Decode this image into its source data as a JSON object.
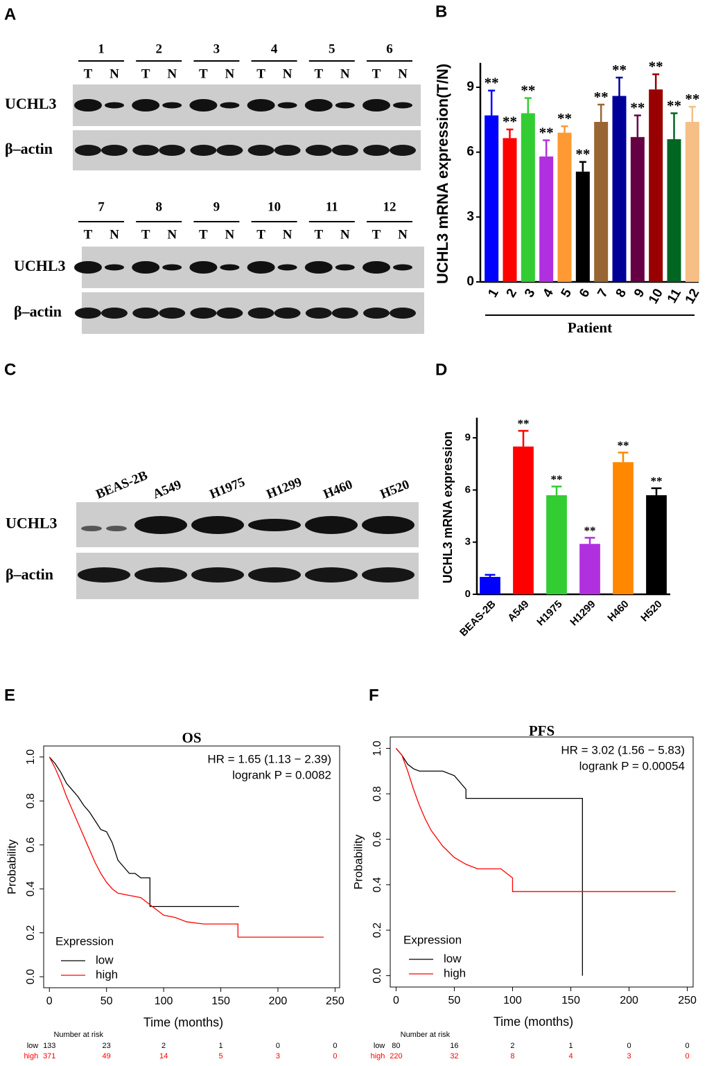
{
  "panel_a": {
    "label": "A",
    "groups": [
      {
        "lanes": [
          "1",
          "2",
          "3",
          "4",
          "5",
          "6"
        ],
        "subs": [
          "T",
          "N"
        ],
        "rows": [
          "UCHL3",
          "β–actin"
        ]
      },
      {
        "lanes": [
          "7",
          "8",
          "9",
          "10",
          "11",
          "12"
        ],
        "subs": [
          "T",
          "N"
        ],
        "rows": [
          "UCHL3",
          "β–actin"
        ]
      }
    ]
  },
  "panel_c": {
    "label": "C",
    "lanes": [
      "BEAS-2B",
      "A549",
      "H1975",
      "H1299",
      "H460",
      "H520"
    ],
    "rows": [
      "UCHL3",
      "β–actin"
    ]
  },
  "chart_data": [
    {
      "label": "B",
      "type": "bar",
      "ylabel": "UCHL3 mRNA expression(T/N)",
      "xlabel": "Patient",
      "categories": [
        "1",
        "2",
        "3",
        "4",
        "5",
        "6",
        "7",
        "8",
        "9",
        "10",
        "11",
        "12"
      ],
      "values": [
        7.7,
        6.65,
        7.8,
        5.8,
        6.9,
        5.1,
        7.4,
        8.6,
        6.7,
        8.9,
        6.6,
        7.4
      ],
      "errors": [
        1.15,
        0.4,
        0.7,
        0.75,
        0.3,
        0.45,
        0.8,
        0.85,
        1.0,
        0.7,
        1.2,
        0.7
      ],
      "colors": [
        "#0000ff",
        "#ff0000",
        "#33cc33",
        "#b030e0",
        "#ff9933",
        "#000000",
        "#996633",
        "#000099",
        "#660044",
        "#990000",
        "#006622",
        "#f5bf85"
      ],
      "annotations": [
        "**",
        "**",
        "**",
        "**",
        "**",
        "**",
        "**",
        "**",
        "**",
        "**",
        "**",
        "**"
      ],
      "ylim": [
        0,
        10
      ],
      "yticks": [
        0,
        3,
        6,
        9
      ]
    },
    {
      "label": "D",
      "type": "bar",
      "ylabel": "UCHL3 mRNA expression",
      "categories": [
        "BEAS-2B",
        "A549",
        "H1975",
        "H1299",
        "H460",
        "H520"
      ],
      "values": [
        1.0,
        8.5,
        5.7,
        2.9,
        7.6,
        5.7
      ],
      "errors": [
        0.12,
        0.9,
        0.5,
        0.35,
        0.55,
        0.4
      ],
      "colors": [
        "#0000ff",
        "#ff0000",
        "#33cc33",
        "#b030e0",
        "#ff8800",
        "#000000"
      ],
      "annotations": [
        null,
        "**",
        "**",
        "**",
        "**",
        "**"
      ],
      "ylim": [
        0,
        10
      ],
      "yticks": [
        0,
        3,
        6,
        9
      ]
    },
    {
      "label": "E",
      "type": "line",
      "title": "OS",
      "xlabel": "Time (months)",
      "ylabel": "Probability",
      "annotations": [
        "HR = 1.65 (1.13 − 2.39)",
        "logrank P = 0.0082"
      ],
      "legend_title": "Expression",
      "series": [
        {
          "name": "low",
          "color": "#000000",
          "x": [
            0,
            5,
            10,
            15,
            20,
            25,
            30,
            35,
            40,
            45,
            50,
            55,
            60,
            65,
            70,
            75,
            80,
            88,
            88,
            100,
            166
          ],
          "values": [
            1,
            0.97,
            0.93,
            0.88,
            0.85,
            0.82,
            0.78,
            0.75,
            0.71,
            0.67,
            0.66,
            0.61,
            0.53,
            0.5,
            0.47,
            0.47,
            0.45,
            0.45,
            0.32,
            0.32,
            0.32
          ]
        },
        {
          "name": "high",
          "color": "#ff0000",
          "x": [
            0,
            5,
            10,
            15,
            20,
            25,
            30,
            35,
            40,
            45,
            50,
            55,
            60,
            70,
            80,
            90,
            100,
            110,
            120,
            135,
            165,
            165,
            240
          ],
          "values": [
            1,
            0.95,
            0.89,
            0.82,
            0.76,
            0.7,
            0.64,
            0.58,
            0.52,
            0.47,
            0.43,
            0.4,
            0.38,
            0.37,
            0.36,
            0.32,
            0.28,
            0.27,
            0.25,
            0.24,
            0.24,
            0.18,
            0.18
          ]
        }
      ],
      "xlim": [
        -5,
        254
      ],
      "xticks": [
        0,
        50,
        100,
        150,
        200,
        250
      ],
      "ylim": [
        -0.05,
        1.05
      ],
      "yticks": [
        {
          "value": 0,
          "label": "0.0"
        },
        0.2,
        0.4,
        0.6,
        0.8,
        {
          "value": 1,
          "label": "1.0"
        }
      ],
      "risk_table": {
        "title": "Number at risk",
        "rows": [
          {
            "name": "low",
            "color": "#000000",
            "values": [
              133,
              23,
              2,
              1,
              0,
              0
            ]
          },
          {
            "name": "high",
            "color": "#ff0000",
            "values": [
              371,
              49,
              14,
              5,
              3,
              0
            ]
          }
        ]
      }
    },
    {
      "label": "F",
      "type": "line",
      "title": "PFS",
      "xlabel": "Time (months)",
      "ylabel": "Probability",
      "annotations": [
        "HR = 3.02 (1.56 − 5.83)",
        "logrank P = 0.00054"
      ],
      "legend_title": "Expression",
      "series": [
        {
          "name": "low",
          "color": "#000000",
          "x": [
            0,
            5,
            10,
            15,
            20,
            40,
            50,
            55,
            60,
            60,
            100,
            160,
            160
          ],
          "values": [
            1,
            0.97,
            0.93,
            0.91,
            0.9,
            0.9,
            0.88,
            0.85,
            0.82,
            0.78,
            0.78,
            0.78,
            0
          ]
        },
        {
          "name": "high",
          "color": "#ff0000",
          "x": [
            0,
            5,
            10,
            15,
            20,
            25,
            30,
            40,
            50,
            60,
            70,
            80,
            90,
            100,
            100,
            240
          ],
          "values": [
            1,
            0.97,
            0.9,
            0.82,
            0.75,
            0.69,
            0.64,
            0.57,
            0.52,
            0.49,
            0.47,
            0.47,
            0.47,
            0.43,
            0.37,
            0.37
          ]
        }
      ],
      "xlim": [
        -5,
        255
      ],
      "xticks": [
        0,
        50,
        100,
        150,
        200,
        250
      ],
      "ylim": [
        -0.05,
        1.05
      ],
      "yticks": [
        {
          "value": 0,
          "label": "0.0"
        },
        0.2,
        0.4,
        0.6,
        0.8,
        {
          "value": 1,
          "label": "1.0"
        }
      ],
      "risk_table": {
        "title": "Number at risk",
        "rows": [
          {
            "name": "low",
            "color": "#000000",
            "values": [
              80,
              16,
              2,
              1,
              0,
              0
            ]
          },
          {
            "name": "high",
            "color": "#ff0000",
            "values": [
              220,
              32,
              8,
              4,
              3,
              0
            ]
          }
        ]
      }
    }
  ]
}
